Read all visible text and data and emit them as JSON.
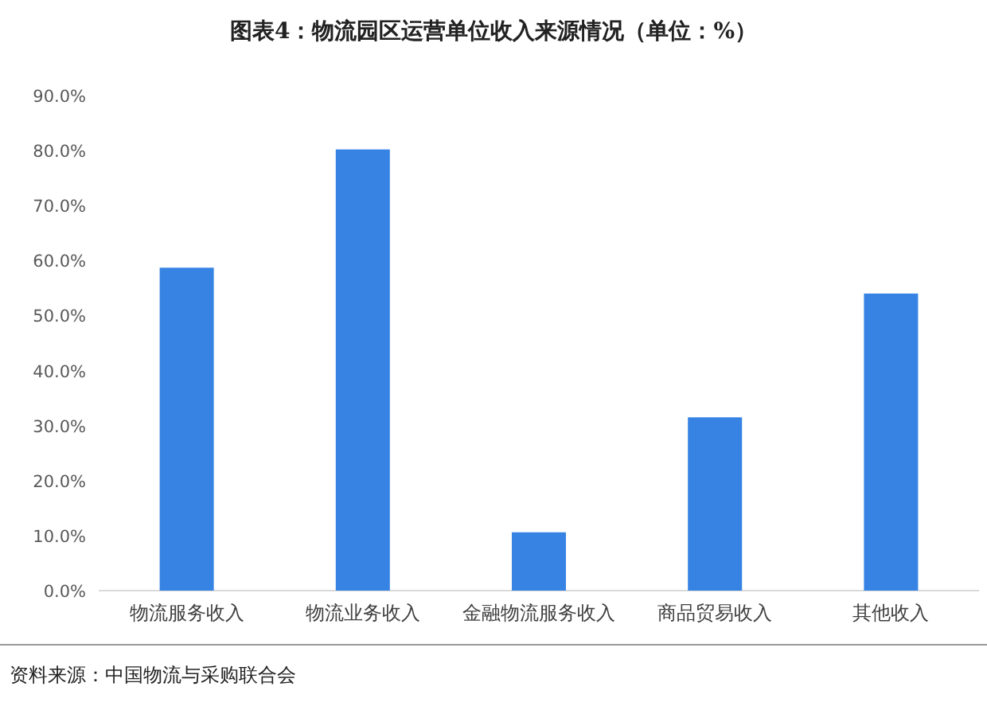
{
  "chart_data": {
    "type": "bar",
    "title": "图表4：物流园区运营单位收入来源情况（单位：%）",
    "categories": [
      "物流服务收入",
      "物流业务收入",
      "金融物流服务收入",
      "商品贸易收入",
      "其他收入"
    ],
    "values": [
      58.7,
      80.2,
      10.6,
      31.5,
      54.0
    ],
    "color": "#3683e3",
    "ylim": [
      0,
      90
    ],
    "yticks": [
      {
        "value": 0,
        "label": "0.0%"
      },
      {
        "value": 10,
        "label": "10.0%"
      },
      {
        "value": 20,
        "label": "20.0%"
      },
      {
        "value": 30,
        "label": "30.0%"
      },
      {
        "value": 40,
        "label": "40.0%"
      },
      {
        "value": 50,
        "label": "50.0%"
      },
      {
        "value": 60,
        "label": "60.0%"
      },
      {
        "value": 70,
        "label": "70.0%"
      },
      {
        "value": 80,
        "label": "80.0%"
      },
      {
        "value": 90,
        "label": "90.0%"
      }
    ],
    "grid": false,
    "annotations": [
      "资料来源：中国物流与采购联合会"
    ]
  }
}
